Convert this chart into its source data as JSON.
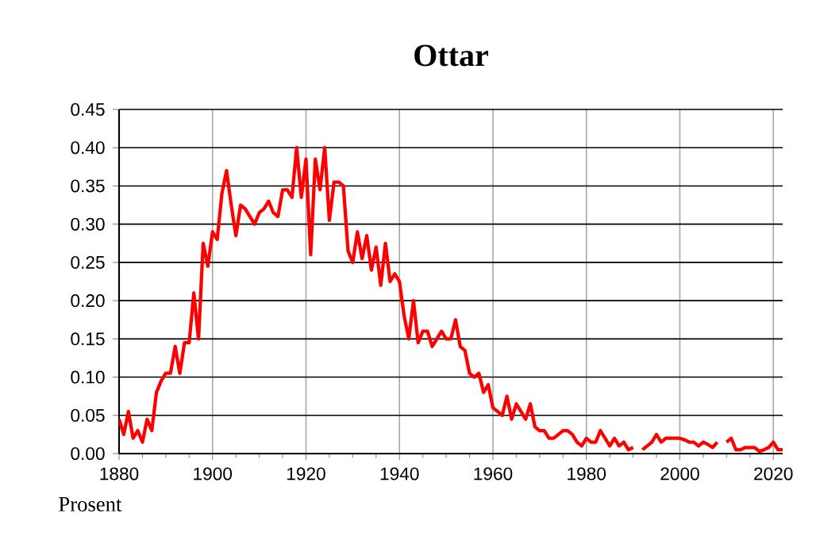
{
  "chart_data": {
    "type": "line",
    "title": "Ottar",
    "ylabel": "Prosent",
    "x": [
      1880,
      1881,
      1882,
      1883,
      1884,
      1885,
      1886,
      1887,
      1888,
      1889,
      1890,
      1891,
      1892,
      1893,
      1894,
      1895,
      1896,
      1897,
      1898,
      1899,
      1900,
      1901,
      1902,
      1903,
      1904,
      1905,
      1906,
      1907,
      1908,
      1909,
      1910,
      1911,
      1912,
      1913,
      1914,
      1915,
      1916,
      1917,
      1918,
      1919,
      1920,
      1921,
      1922,
      1923,
      1924,
      1925,
      1926,
      1927,
      1928,
      1929,
      1930,
      1931,
      1932,
      1933,
      1934,
      1935,
      1936,
      1937,
      1938,
      1939,
      1940,
      1941,
      1942,
      1943,
      1944,
      1945,
      1946,
      1947,
      1948,
      1949,
      1950,
      1951,
      1952,
      1953,
      1954,
      1955,
      1956,
      1957,
      1958,
      1959,
      1960,
      1961,
      1962,
      1963,
      1964,
      1965,
      1966,
      1967,
      1968,
      1969,
      1970,
      1971,
      1972,
      1973,
      1974,
      1975,
      1976,
      1977,
      1978,
      1979,
      1980,
      1981,
      1982,
      1983,
      1984,
      1985,
      1986,
      1987,
      1988,
      1989,
      1990,
      1991,
      1992,
      1993,
      1994,
      1995,
      1996,
      1997,
      1998,
      1999,
      2000,
      2001,
      2002,
      2003,
      2004,
      2005,
      2006,
      2007,
      2008,
      2009,
      2010,
      2011,
      2012,
      2013,
      2014,
      2015,
      2016,
      2017,
      2018,
      2019,
      2020,
      2021,
      2022
    ],
    "series": [
      {
        "color": "#ff0000",
        "values": [
          0.045,
          0.025,
          0.055,
          0.02,
          0.03,
          0.015,
          0.045,
          0.03,
          0.08,
          0.095,
          0.105,
          0.105,
          0.14,
          0.105,
          0.145,
          0.145,
          0.21,
          0.15,
          0.275,
          0.245,
          0.29,
          0.28,
          0.34,
          0.37,
          0.325,
          0.285,
          0.325,
          0.32,
          0.31,
          0.3,
          0.315,
          0.32,
          0.33,
          0.315,
          0.31,
          0.345,
          0.345,
          0.335,
          0.4,
          0.335,
          0.385,
          0.26,
          0.385,
          0.345,
          0.4,
          0.305,
          0.355,
          0.355,
          0.35,
          0.265,
          0.25,
          0.29,
          0.255,
          0.285,
          0.24,
          0.27,
          0.22,
          0.275,
          0.225,
          0.235,
          0.225,
          0.18,
          0.15,
          0.2,
          0.145,
          0.16,
          0.16,
          0.14,
          0.15,
          0.16,
          0.15,
          0.15,
          0.175,
          0.14,
          0.135,
          0.105,
          0.1,
          0.105,
          0.08,
          0.09,
          0.06,
          0.055,
          0.05,
          0.075,
          0.045,
          0.065,
          0.055,
          0.045,
          0.065,
          0.035,
          0.03,
          0.03,
          0.02,
          0.02,
          0.025,
          0.03,
          0.03,
          0.025,
          0.015,
          0.01,
          0.02,
          0.015,
          0.015,
          0.03,
          0.02,
          0.01,
          0.02,
          0.01,
          0.015,
          0.005,
          0.008,
          null,
          0.005,
          0.01,
          0.015,
          0.025,
          0.015,
          0.02,
          0.02,
          0.02,
          0.02,
          0.018,
          0.015,
          0.015,
          0.01,
          0.015,
          0.012,
          0.008,
          0.015,
          null,
          0.015,
          0.02,
          0.005,
          0.005,
          0.008,
          0.008,
          0.008,
          0.003,
          0.005,
          0.008,
          0.015,
          0.005,
          0.005
        ]
      }
    ],
    "xlim": [
      1880,
      2022
    ],
    "xticks": [
      1880,
      1900,
      1920,
      1940,
      1960,
      1980,
      2000,
      2020
    ],
    "ylim": [
      0,
      0.45
    ],
    "yticks": [
      {
        "value": 0,
        "label": "0.00"
      },
      {
        "value": 0.05,
        "label": "0.05"
      },
      {
        "value": 0.1,
        "label": "0.10"
      },
      {
        "value": 0.15,
        "label": "0.15"
      },
      {
        "value": 0.2,
        "label": "0.20"
      },
      {
        "value": 0.25,
        "label": "0.25"
      },
      {
        "value": 0.3,
        "label": "0.30"
      },
      {
        "value": 0.35,
        "label": "0.35"
      },
      {
        "value": 0.4,
        "label": "0.40"
      },
      {
        "value": 0.45,
        "label": "0.45"
      }
    ],
    "grid": true,
    "marker": "none",
    "line_style": "solid"
  }
}
